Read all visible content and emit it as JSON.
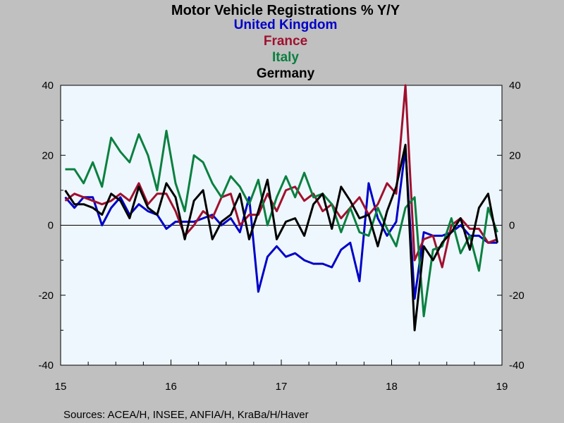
{
  "chart_data": {
    "type": "line",
    "title": "Motor Vehicle Registrations % Y/Y",
    "source": "Sources:  ACEA/H, INSEE, ANFIA/H, KraBa/H/Haver",
    "ylim": [
      -40,
      40
    ],
    "xlim": [
      2015.0,
      2019.0
    ],
    "y_ticks": [
      {
        "value": 40,
        "label": "40"
      },
      {
        "value": 20,
        "label": "20"
      },
      {
        "value": 0,
        "label": "0"
      },
      {
        "value": -20,
        "label": "-20"
      },
      {
        "value": -40,
        "label": "-40"
      }
    ],
    "x_ticks": [
      {
        "value": 2015,
        "label": "15"
      },
      {
        "value": 2016,
        "label": "16"
      },
      {
        "value": 2017,
        "label": "17"
      },
      {
        "value": 2018,
        "label": "18"
      },
      {
        "value": 2019,
        "label": "19"
      }
    ],
    "grid": false,
    "zero_line": true,
    "legend_placement": "top-center",
    "plot_background": "#eef7fd",
    "x_start": "2015-01",
    "x_step": "monthly",
    "series": [
      {
        "name": "United Kingdom",
        "color": "#0000c8",
        "values": [
          8,
          5,
          8,
          8,
          0,
          5,
          8,
          3,
          6,
          4,
          3,
          -1,
          1,
          1,
          1,
          2,
          3,
          0,
          2,
          -2,
          8,
          -19,
          -9,
          -6,
          -9,
          -8,
          -10,
          -11,
          -11,
          -12,
          -7,
          -5,
          -16,
          12,
          2,
          -3,
          1,
          22,
          -21,
          -2,
          -3,
          -3,
          -2,
          0,
          -3,
          -3,
          -5,
          -5
        ]
      },
      {
        "name": "France",
        "color": "#a0102e",
        "values": [
          7,
          9,
          8,
          7,
          6,
          7,
          9,
          7,
          12,
          6,
          9,
          9,
          4,
          -3,
          0,
          4,
          2,
          8,
          9,
          0,
          3,
          3,
          9,
          4,
          10,
          11,
          7,
          9,
          4,
          6,
          2,
          5,
          8,
          3,
          6,
          12,
          9,
          40,
          -10,
          -4,
          -3,
          -12,
          0,
          2,
          -1,
          -1,
          -5,
          -4
        ]
      },
      {
        "name": "Italy",
        "color": "#0a8040",
        "values": [
          16,
          16,
          12,
          18,
          11,
          25,
          21,
          18,
          26,
          20,
          10,
          27,
          12,
          4,
          20,
          18,
          12,
          8,
          14,
          11,
          6,
          13,
          0,
          8,
          14,
          8,
          15,
          8,
          9,
          6,
          -2,
          5,
          -2,
          -3,
          5,
          -1,
          -6,
          5,
          8,
          -26,
          -7,
          -6,
          2,
          -8,
          -3,
          -13,
          5,
          -2
        ]
      },
      {
        "name": "Germany",
        "color": "#000000",
        "values": [
          10,
          6,
          6,
          5,
          3,
          9,
          7,
          2,
          11,
          5,
          3,
          12,
          8,
          -4,
          7,
          10,
          -4,
          1,
          3,
          9,
          -4,
          4,
          13,
          -4,
          1,
          2,
          -3,
          6,
          9,
          -1,
          11,
          7,
          2,
          3,
          -6,
          4,
          11,
          23,
          -30,
          -6,
          -10,
          -5,
          -2,
          2,
          -7,
          5,
          9,
          -5
        ]
      }
    ]
  }
}
